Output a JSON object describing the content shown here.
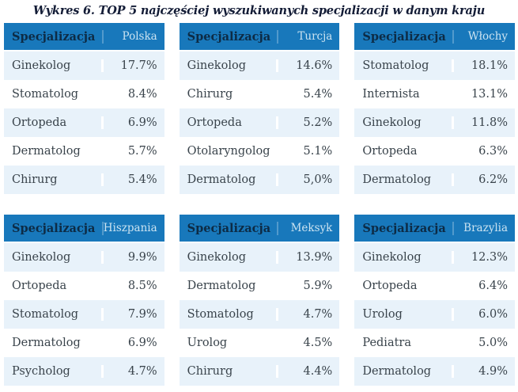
{
  "chart_data": {
    "type": "table",
    "title": "Wykres 6. TOP 5 najczęściej wyszukiwanych specjalizacji w danym kraju",
    "column_header": "Specjalizacja",
    "layout": "3x2 grid of country tables",
    "colors": {
      "header_background": "#1878bb",
      "header_label_text": "#0d2b45",
      "country_label_text": "#cbe3f1",
      "row_alt_background": "#e8f2fa",
      "row_text": "#39434b",
      "title_text": "#131c36"
    },
    "tables": [
      {
        "country": "Polska",
        "rows": [
          {
            "name": "Ginekolog",
            "value": "17.7%"
          },
          {
            "name": "Stomatolog",
            "value": "8.4%"
          },
          {
            "name": "Ortopeda",
            "value": "6.9%"
          },
          {
            "name": "Dermatolog",
            "value": "5.7%"
          },
          {
            "name": "Chirurg",
            "value": "5.4%"
          }
        ]
      },
      {
        "country": "Turcja",
        "rows": [
          {
            "name": "Ginekolog",
            "value": "14.6%"
          },
          {
            "name": "Chirurg",
            "value": "5.4%"
          },
          {
            "name": "Ortopeda",
            "value": "5.2%"
          },
          {
            "name": "Otolaryngolog",
            "value": "5.1%"
          },
          {
            "name": "Dermatolog",
            "value": "5,0%"
          }
        ]
      },
      {
        "country": "Włochy",
        "rows": [
          {
            "name": "Stomatolog",
            "value": "18.1%"
          },
          {
            "name": "Internista",
            "value": "13.1%"
          },
          {
            "name": "Ginekolog",
            "value": "11.8%"
          },
          {
            "name": "Ortopeda",
            "value": "6.3%"
          },
          {
            "name": "Dermatolog",
            "value": "6.2%"
          }
        ]
      },
      {
        "country": "Hiszpania",
        "rows": [
          {
            "name": "Ginekolog",
            "value": "9.9%"
          },
          {
            "name": "Ortopeda",
            "value": "8.5%"
          },
          {
            "name": "Stomatolog",
            "value": "7.9%"
          },
          {
            "name": "Dermatolog",
            "value": "6.9%"
          },
          {
            "name": "Psycholog",
            "value": "4.7%"
          }
        ]
      },
      {
        "country": "Meksyk",
        "rows": [
          {
            "name": "Ginekolog",
            "value": "13.9%"
          },
          {
            "name": "Dermatolog",
            "value": "5.9%"
          },
          {
            "name": "Stomatolog",
            "value": "4.7%"
          },
          {
            "name": "Urolog",
            "value": "4.5%"
          },
          {
            "name": "Chirurg",
            "value": "4.4%"
          }
        ]
      },
      {
        "country": "Brazylia",
        "rows": [
          {
            "name": "Ginekolog",
            "value": "12.3%"
          },
          {
            "name": "Ortopeda",
            "value": "6.4%"
          },
          {
            "name": "Urolog",
            "value": "6.0%"
          },
          {
            "name": "Pediatra",
            "value": "5.0%"
          },
          {
            "name": "Dermatolog",
            "value": "4.9%"
          }
        ]
      }
    ]
  }
}
